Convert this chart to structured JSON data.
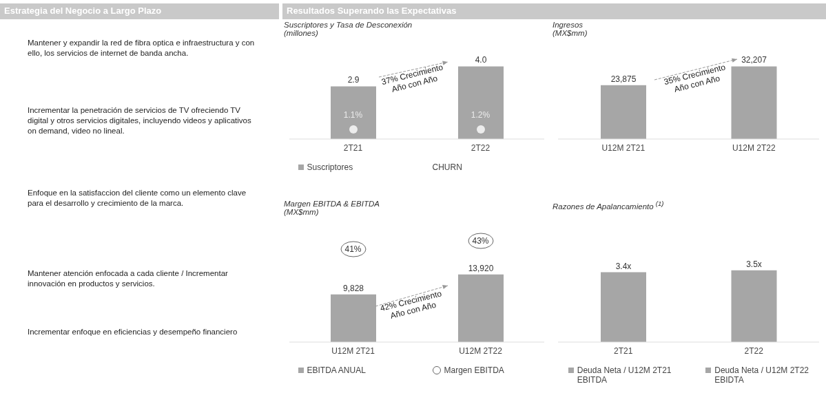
{
  "chart_data": [
    {
      "type": "other",
      "title": "Estrategia del Negocio a Largo Plazo",
      "annotations": [
        "Mantener y expandir la red de fibra optica e infraestructura y con ello, los servicios de internet de banda ancha.",
        "Incrementar la penetración de servicios de TV ofreciendo TV digital y otros servicios digitales, incluyendo videos y aplicativos on demand, video no lineal.",
        "Enfoque en la satisfaccion del cliente como un elemento clave para el desarrollo y crecimiento de la marca.",
        "Mantener atención enfocada a cada cliente / Incrementar innovación en productos y servicios.",
        "Incrementar enfoque en eficiencias y desempeño financiero"
      ]
    },
    {
      "type": "other",
      "title": "Resultados Superando las Expectativas"
    },
    {
      "type": "bar",
      "title": "Suscriptores y Tasa de Desconexión",
      "subtitle": "(millones)",
      "categories": [
        "2T21",
        "2T22"
      ],
      "legend": "bottom",
      "annotations": [
        "37% Crecimiento Año con Año",
        "1.1%",
        "1.2%",
        "CHURN"
      ],
      "series": [
        {
          "name": "Suscriptores",
          "color": "#a6a6a6",
          "values": [
            2.9,
            4.0
          ],
          "value_labels": [
            "2.9",
            "4.0"
          ]
        }
      ]
    },
    {
      "type": "bar",
      "title": "Ingresos",
      "subtitle": "(MX$mm)",
      "categories": [
        "U12M 2T21",
        "U12M 2T22"
      ],
      "annotations": [
        "35% Crecimiento Año con Año"
      ],
      "series": [
        {
          "color": "#a6a6a6",
          "values": [
            23875,
            32207
          ],
          "value_labels": [
            "23,875",
            "32,207"
          ]
        }
      ]
    },
    {
      "type": "bar",
      "title": "Margen EBITDA & EBITDA",
      "subtitle": "(MX$mm)",
      "categories": [
        "U12M 2T21",
        "U12M 2T22"
      ],
      "legend": "bottom",
      "annotations": [
        "42% Crecimiento Año con Año",
        "41%",
        "43%",
        "Margen EBITDA"
      ],
      "series": [
        {
          "name": "EBITDA ANUAL",
          "color": "#a6a6a6",
          "values": [
            9828,
            13920
          ],
          "value_labels": [
            "9,828",
            "13,920"
          ]
        }
      ]
    },
    {
      "type": "bar",
      "title": "Razones de Apalancamiento $^{(1)}$",
      "categories": [
        "2T21",
        "2T22"
      ],
      "legend": "bottom",
      "stacked": true,
      "series": [
        {
          "name": "Deuda Neta / U12M 2T21 EBITDA",
          "color": "#a6a6a6",
          "values": [
            3.4,
            null
          ],
          "value_labels": [
            "3.4x",
            null
          ]
        },
        {
          "name": "Deuda Neta / U12M 2T22 EBIDTA",
          "color": "#a6a6a6",
          "values": [
            null,
            3.5
          ],
          "value_labels": [
            null,
            "3.5x"
          ]
        }
      ]
    }
  ]
}
